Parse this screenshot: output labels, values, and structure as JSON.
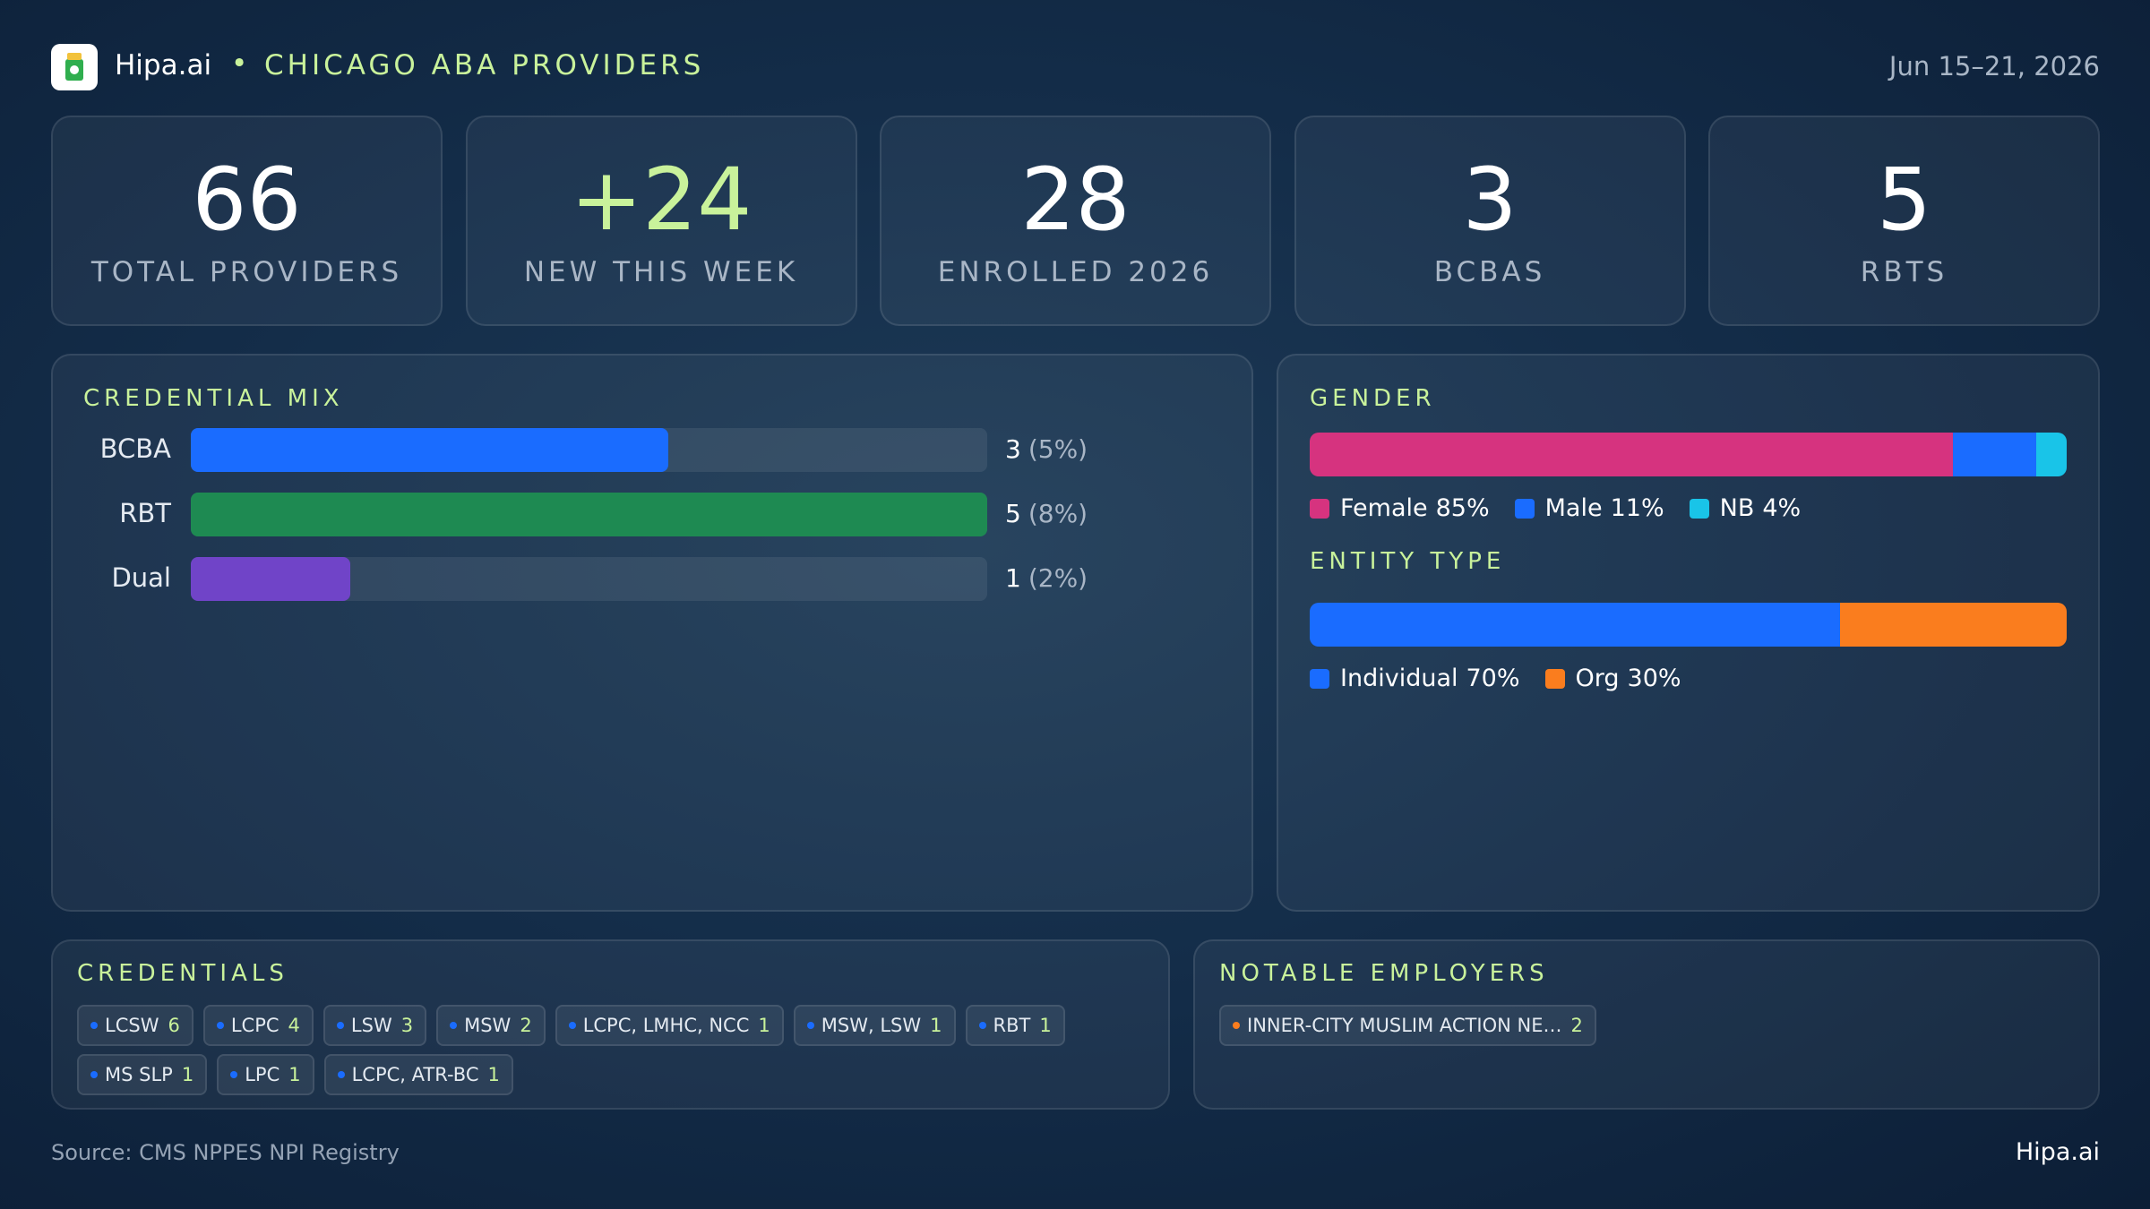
{
  "header": {
    "brand": "Hipa.ai",
    "title": "CHICAGO ABA PROVIDERS",
    "date": "Jun 15–21, 2026"
  },
  "stats": [
    {
      "value": "66",
      "label": "TOTAL PROVIDERS"
    },
    {
      "value": "+24",
      "label": "NEW THIS WEEK",
      "accent": true
    },
    {
      "value": "28",
      "label": "ENROLLED 2026"
    },
    {
      "value": "3",
      "label": "BCBAS"
    },
    {
      "value": "5",
      "label": "RBTS"
    }
  ],
  "credential_mix": {
    "title": "CREDENTIAL MIX",
    "xlim": [
      0,
      5
    ],
    "categories": [
      "BCBA",
      "RBT",
      "Dual"
    ],
    "values": [
      3,
      5,
      1
    ],
    "shares": [
      "(5%)",
      "(8%)",
      "(2%)"
    ],
    "colors": [
      "#1a6cff",
      "#1e8a52",
      "#7044c8"
    ]
  },
  "gender": {
    "title": "GENDER",
    "xlim": [
      0,
      100
    ],
    "series": [
      {
        "name": "Female",
        "color": "#d6337f",
        "value": 85,
        "value_label": "85%"
      },
      {
        "name": "Male",
        "color": "#1a6cff",
        "value": 11,
        "value_label": "11%"
      },
      {
        "name": "NB",
        "color": "#19c4e8",
        "value": 4,
        "value_label": "4%"
      }
    ]
  },
  "entity_type": {
    "title": "ENTITY TYPE",
    "xlim": [
      0,
      100
    ],
    "series": [
      {
        "name": "Individual",
        "color": "#1a6cff",
        "value": 70,
        "value_label": "70%"
      },
      {
        "name": "Org",
        "color": "#fa7d1e",
        "value": 30,
        "value_label": "30%"
      }
    ]
  },
  "credentials": {
    "title": "CREDENTIALS",
    "dot_color": "#1a6cff",
    "items": [
      {
        "name": "LCSW",
        "count": 6
      },
      {
        "name": "LCPC",
        "count": 4
      },
      {
        "name": "LSW",
        "count": 3
      },
      {
        "name": "MSW",
        "count": 2
      },
      {
        "name": "LCPC, LMHC, NCC",
        "count": 1
      },
      {
        "name": "MSW, LSW",
        "count": 1
      },
      {
        "name": "RBT",
        "count": 1
      },
      {
        "name": "MS SLP",
        "count": 1
      },
      {
        "name": "LPC",
        "count": 1
      },
      {
        "name": "LCPC, ATR-BC",
        "count": 1
      }
    ]
  },
  "employers": {
    "title": "NOTABLE EMPLOYERS",
    "dot_color": "#fa7d1e",
    "items": [
      {
        "name": "INNER-CITY MUSLIM ACTION NE…",
        "count": 2
      }
    ]
  },
  "footer": {
    "source": "Source: CMS NPPES NPI Registry",
    "brand": "Hipa.ai"
  }
}
